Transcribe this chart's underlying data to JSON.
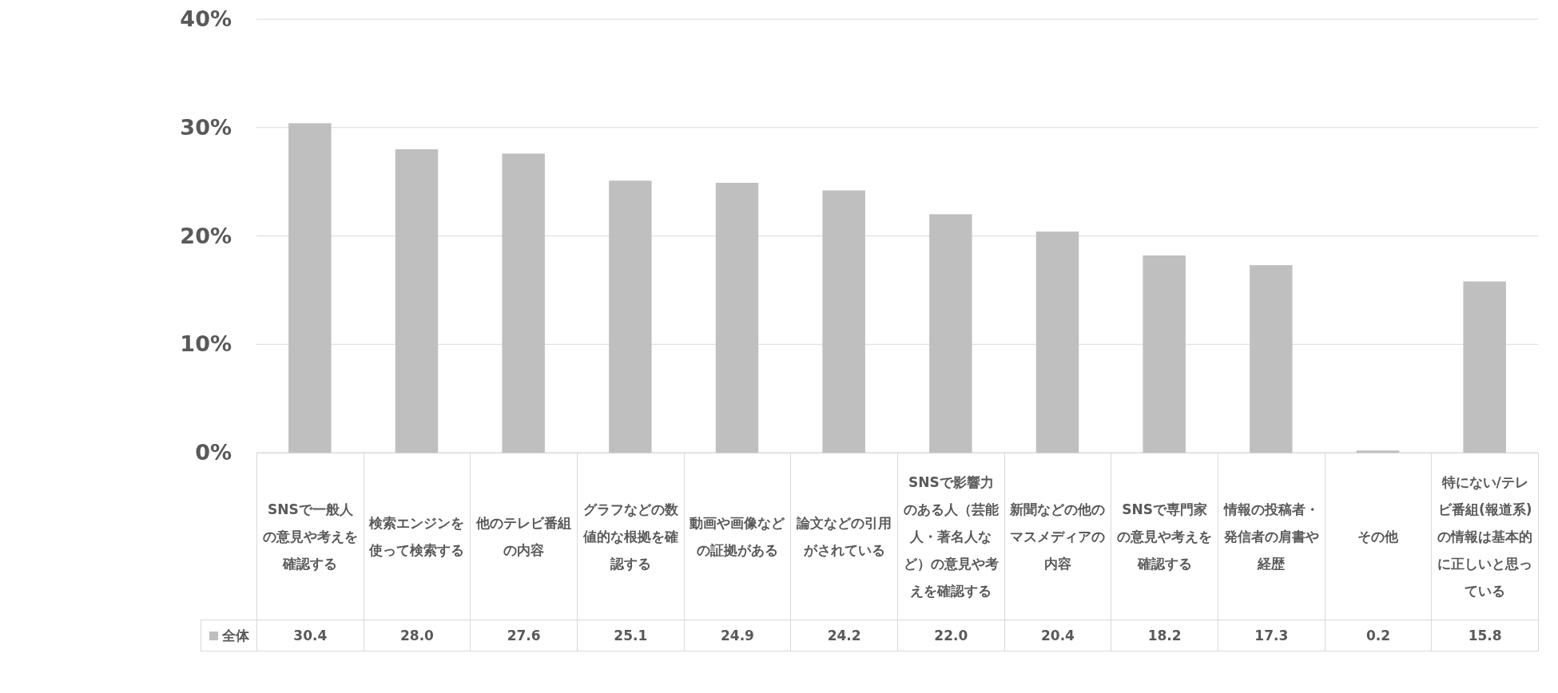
{
  "chart_data": {
    "type": "bar",
    "categories": [
      "SNSで一般人の意見や考えを確認する",
      "検索エンジンを使って検索する",
      "他のテレビ番組の内容",
      "グラフなどの数値的な根拠を確認する",
      "動画や画像などの証拠がある",
      "論文などの引用がされている",
      "SNSで影響力のある人（芸能人・著名人など）の意見や考えを確認する",
      "新聞などの他のマスメディアの内容",
      "SNSで専門家の意見や考えを確認する",
      "情報の投稿者・発信者の肩書や経歴",
      "その他",
      "特にない/テレビ番組(報道系)の情報は基本的に正しいと思っている"
    ],
    "series": [
      {
        "name": "全体",
        "color": "#bfbfbf",
        "values": [
          30.4,
          28.0,
          27.6,
          25.1,
          24.9,
          24.2,
          22.0,
          20.4,
          18.2,
          17.3,
          0.2,
          15.8
        ],
        "value_labels": [
          "30.4",
          "28.0",
          "27.6",
          "25.1",
          "24.9",
          "24.2",
          "22.0",
          "20.4",
          "18.2",
          "17.3",
          "0.2",
          "15.8"
        ]
      }
    ],
    "ylim": [
      0,
      40
    ],
    "yticks": [
      {
        "value": 0,
        "label": "0%"
      },
      {
        "value": 10,
        "label": "10%"
      },
      {
        "value": 20,
        "label": "20%"
      },
      {
        "value": 30,
        "label": "30%"
      },
      {
        "value": 40,
        "label": "40%"
      }
    ],
    "grid": "y",
    "legend": "bottom"
  }
}
